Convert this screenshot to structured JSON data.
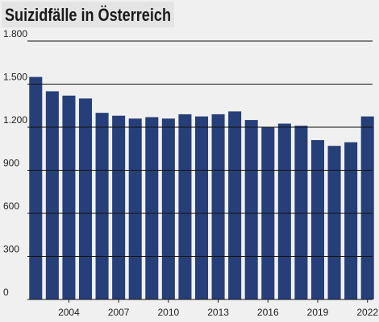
{
  "chart_data": {
    "type": "bar",
    "title": "Suizidfälle in Österreich",
    "categories": [
      null,
      null,
      "2004",
      null,
      null,
      "2007",
      null,
      null,
      "2010",
      null,
      null,
      "2013",
      null,
      null,
      "2016",
      null,
      null,
      "2019",
      null,
      null,
      "2022"
    ],
    "values": [
      1550,
      1450,
      1420,
      1400,
      1300,
      1280,
      1260,
      1270,
      1260,
      1290,
      1275,
      1290,
      1310,
      1250,
      1200,
      1225,
      1210,
      1110,
      1070,
      1095,
      1275
    ],
    "color": "#273f78",
    "ylim": [
      0,
      1800
    ],
    "yticks": [
      0,
      300,
      600,
      900,
      {
        "value": 1200,
        "label": "1.200"
      },
      {
        "value": 1500,
        "label": "1.500"
      },
      {
        "value": 1800,
        "label": "1.800"
      }
    ],
    "grid": true
  }
}
